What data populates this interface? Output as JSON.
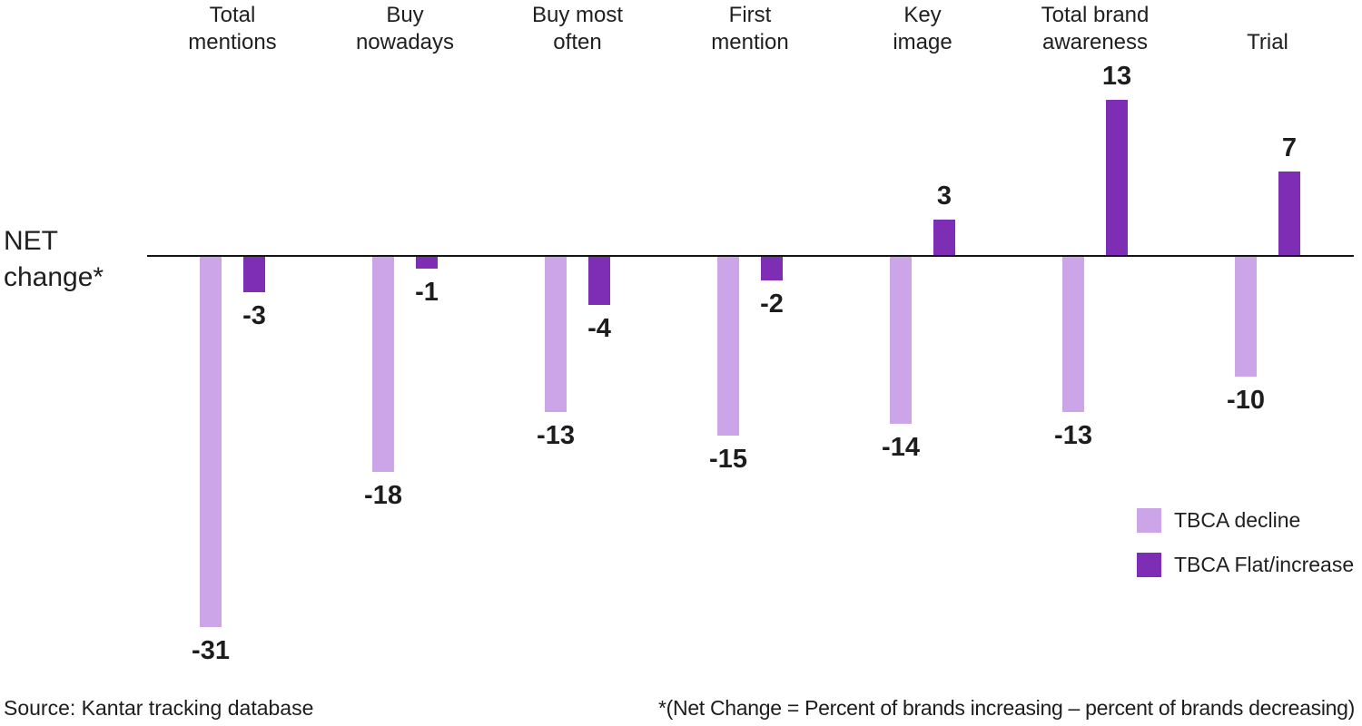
{
  "chart_data": {
    "type": "bar",
    "axis_title_lines": [
      "NET",
      "change*"
    ],
    "categories": [
      {
        "label": "Total mentions",
        "lines": [
          "Total",
          "mentions"
        ]
      },
      {
        "label": "Buy nowadays",
        "lines": [
          "Buy",
          "nowadays"
        ]
      },
      {
        "label": "Buy most often",
        "lines": [
          "Buy most",
          "often"
        ]
      },
      {
        "label": "First mention",
        "lines": [
          "First",
          "mention"
        ]
      },
      {
        "label": "Key image",
        "lines": [
          "Key",
          "image"
        ]
      },
      {
        "label": "Total brand awareness",
        "lines": [
          "Total brand",
          "awareness"
        ]
      },
      {
        "label": "Trial",
        "lines": [
          "Trial"
        ]
      }
    ],
    "series": [
      {
        "name": "TBCA decline",
        "color": "#cca4e8",
        "values": [
          -31,
          -18,
          -13,
          -15,
          -14,
          -13,
          -10
        ]
      },
      {
        "name": "TBCA Flat/increase",
        "color": "#7d2eb5",
        "values": [
          -3,
          -1,
          -4,
          -2,
          3,
          13,
          7
        ]
      }
    ],
    "ylim": [
      -35,
      16
    ],
    "grid": false,
    "legend_position": "right-bottom",
    "source": "Source: Kantar tracking database",
    "footnote": "*(Net Change = Percent of brands increasing – percent of brands decreasing)"
  }
}
